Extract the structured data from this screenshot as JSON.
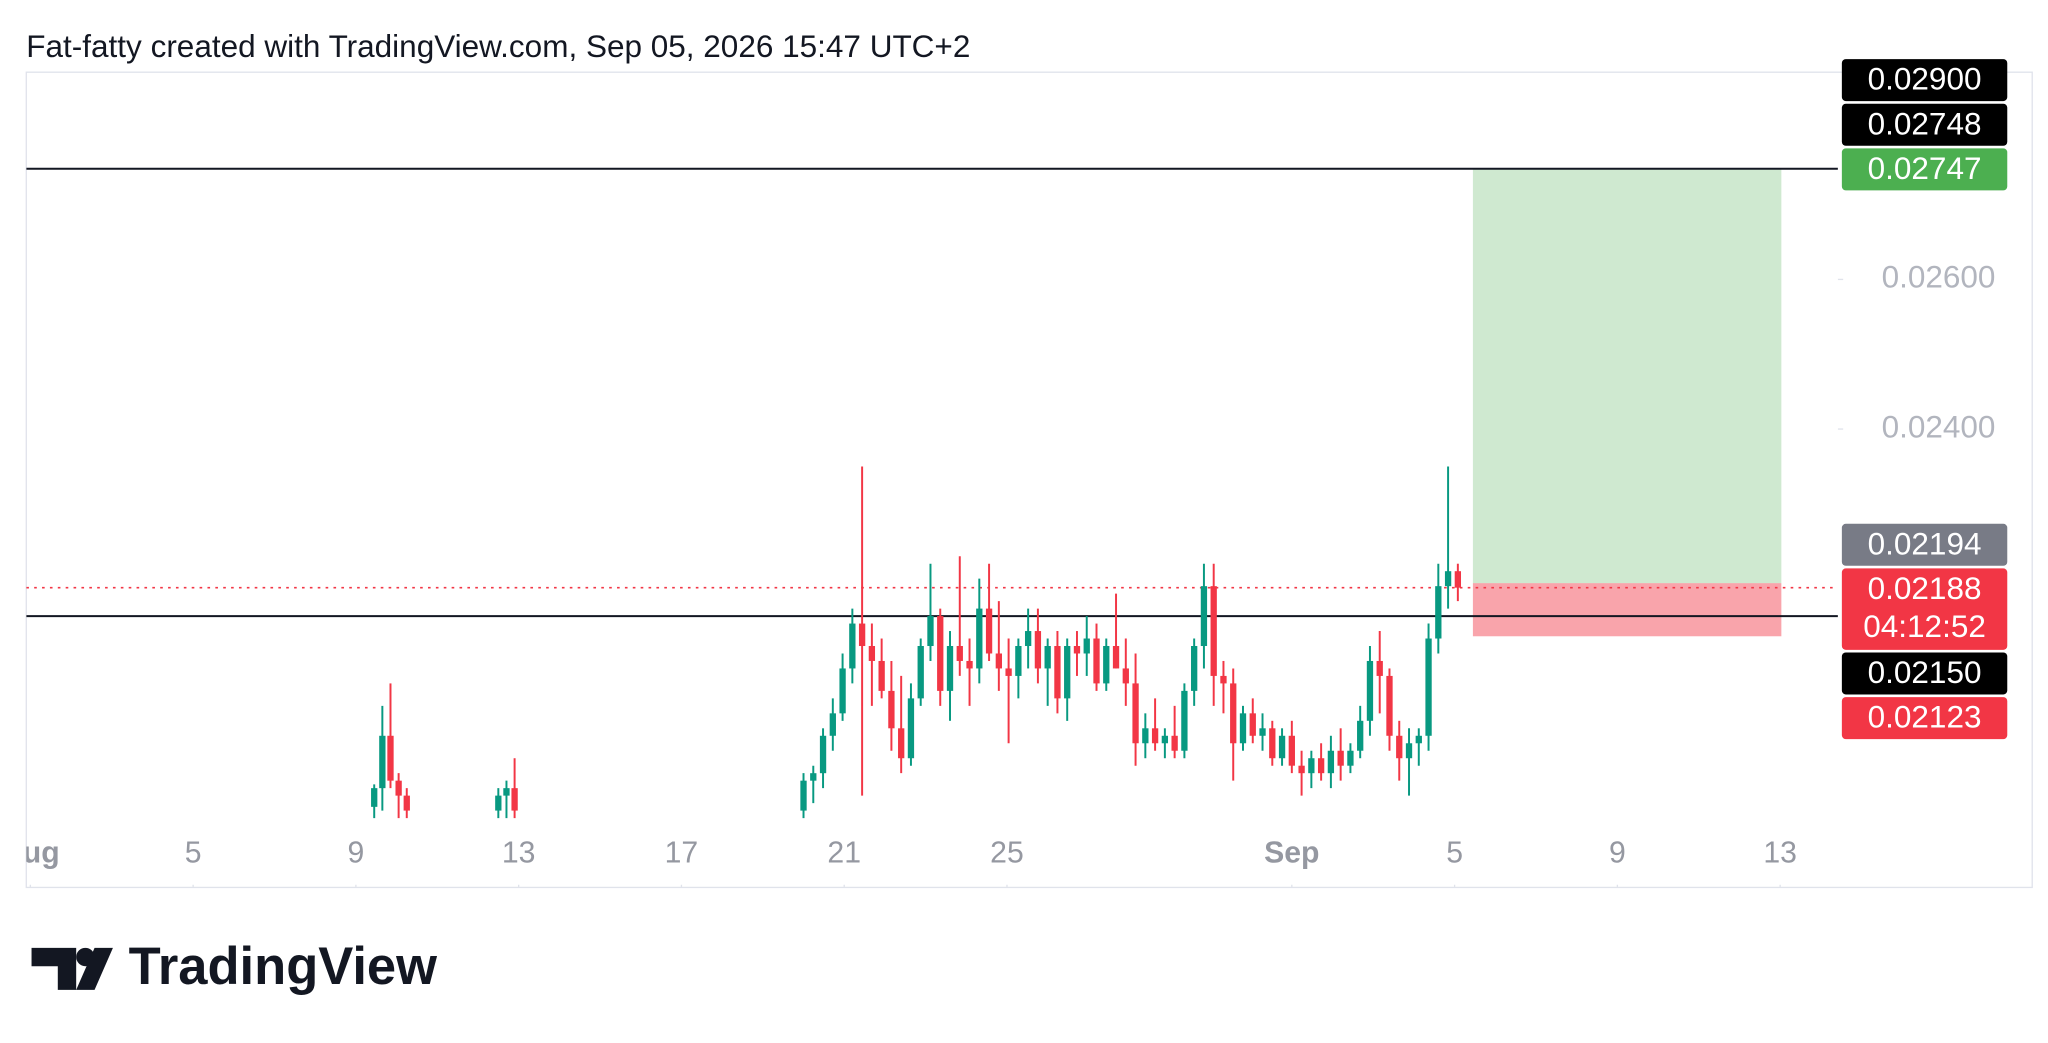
{
  "chart_data": {
    "type": "candlestick",
    "title": "Fat-fatty created with TradingView.com, Sep 05, 2026 15:47 UTC+2",
    "brand": "TradingView",
    "up_color": "#089981",
    "down_color": "#f23645",
    "xlim": [
      0.9,
      45.42
    ],
    "ylim": [
      0.01868,
      0.02877
    ],
    "xticks": [
      {
        "value": 1,
        "label": "Aug"
      },
      5,
      9,
      13,
      17,
      21,
      25,
      {
        "value": 32,
        "label": "Sep"
      },
      {
        "value": 36,
        "label": "5"
      },
      {
        "value": 40,
        "label": "9"
      },
      {
        "value": 44,
        "label": "13"
      }
    ],
    "yticks": [
      {
        "value": 0.024,
        "label": "0.02400"
      },
      {
        "value": 0.026,
        "label": "0.02600"
      }
    ],
    "x": [
      9.45,
      9.65,
      9.85,
      10.05,
      10.25,
      12.5,
      12.7,
      12.9,
      20.0,
      20.24,
      20.48,
      20.72,
      20.96,
      21.2,
      21.44,
      21.68,
      21.92,
      22.16,
      22.4,
      22.64,
      22.88,
      23.12,
      23.36,
      23.6,
      23.84,
      24.08,
      24.32,
      24.56,
      24.8,
      25.04,
      25.28,
      25.52,
      25.76,
      26.0,
      26.24,
      26.48,
      26.72,
      26.96,
      27.2,
      27.44,
      27.68,
      27.92,
      28.16,
      28.4,
      28.64,
      28.88,
      29.12,
      29.36,
      29.6,
      29.84,
      30.08,
      30.32,
      30.56,
      30.8,
      31.04,
      31.28,
      31.52,
      31.76,
      32.0,
      32.24,
      32.48,
      32.72,
      32.96,
      33.2,
      33.44,
      33.68,
      33.92,
      34.16,
      34.4,
      34.64,
      34.88,
      35.12,
      35.36,
      35.6,
      35.84,
      36.08
    ],
    "open": [
      0.01895,
      0.0192,
      0.0199,
      0.0193,
      0.0191,
      0.0189,
      0.0191,
      0.0192,
      0.0189,
      0.0193,
      0.0194,
      0.0199,
      0.0202,
      0.0208,
      0.0214,
      0.0211,
      0.0209,
      0.0205,
      0.02,
      0.0196,
      0.0204,
      0.0211,
      0.0215,
      0.0205,
      0.0211,
      0.0209,
      0.0208,
      0.0216,
      0.021,
      0.0208,
      0.0207,
      0.0211,
      0.0213,
      0.0208,
      0.0211,
      0.0204,
      0.0211,
      0.021,
      0.0212,
      0.0206,
      0.0211,
      0.0208,
      0.0206,
      0.0198,
      0.02,
      0.0198,
      0.0199,
      0.0197,
      0.0205,
      0.0211,
      0.0219,
      0.0207,
      0.0206,
      0.0198,
      0.0202,
      0.0199,
      0.02,
      0.0196,
      0.0199,
      0.0195,
      0.0194,
      0.0196,
      0.0194,
      0.0197,
      0.0195,
      0.0197,
      0.0201,
      0.0209,
      0.0207,
      0.0199,
      0.0196,
      0.0198,
      0.0199,
      0.0212,
      0.0219,
      0.0221
    ],
    "high": [
      0.01925,
      0.0203,
      0.0206,
      0.0194,
      0.0192,
      0.0192,
      0.0193,
      0.0196,
      0.0194,
      0.0195,
      0.02,
      0.0204,
      0.021,
      0.0216,
      0.0235,
      0.0214,
      0.0212,
      0.0209,
      0.0207,
      0.0206,
      0.0212,
      0.0222,
      0.0216,
      0.0213,
      0.0223,
      0.0212,
      0.022,
      0.0222,
      0.0217,
      0.0212,
      0.0212,
      0.0216,
      0.0216,
      0.0212,
      0.0213,
      0.0212,
      0.0213,
      0.0215,
      0.0214,
      0.0212,
      0.0218,
      0.0212,
      0.021,
      0.0202,
      0.0204,
      0.02,
      0.0203,
      0.0206,
      0.0212,
      0.0222,
      0.0222,
      0.0209,
      0.0208,
      0.0203,
      0.0204,
      0.0202,
      0.0201,
      0.02,
      0.0201,
      0.0197,
      0.0197,
      0.0198,
      0.0199,
      0.02,
      0.0198,
      0.0203,
      0.0211,
      0.0213,
      0.0208,
      0.0201,
      0.02,
      0.02,
      0.0214,
      0.0222,
      0.0235,
      0.0222
    ],
    "low": [
      0.0188,
      0.0189,
      0.0192,
      0.0188,
      0.0188,
      0.0188,
      0.0188,
      0.0188,
      0.0188,
      0.019,
      0.0192,
      0.0197,
      0.0201,
      0.0206,
      0.0191,
      0.0203,
      0.0204,
      0.0197,
      0.0194,
      0.0195,
      0.0203,
      0.0209,
      0.0203,
      0.0201,
      0.0207,
      0.0203,
      0.0206,
      0.0209,
      0.0205,
      0.0198,
      0.0204,
      0.0208,
      0.0206,
      0.0203,
      0.0202,
      0.0201,
      0.0207,
      0.0207,
      0.0205,
      0.0205,
      0.0208,
      0.0203,
      0.0195,
      0.0196,
      0.0197,
      0.0196,
      0.0196,
      0.0196,
      0.0203,
      0.0208,
      0.0203,
      0.0202,
      0.0193,
      0.0197,
      0.0198,
      0.0197,
      0.0195,
      0.0195,
      0.0194,
      0.0191,
      0.0192,
      0.0193,
      0.0192,
      0.0193,
      0.0194,
      0.0196,
      0.0199,
      0.0202,
      0.0197,
      0.0193,
      0.0191,
      0.0195,
      0.0197,
      0.021,
      0.0216,
      0.0217
    ],
    "close": [
      0.0192,
      0.0199,
      0.0193,
      0.0191,
      0.0189,
      0.0191,
      0.0192,
      0.0189,
      0.0193,
      0.0194,
      0.0199,
      0.0202,
      0.0208,
      0.0214,
      0.0211,
      0.0209,
      0.0205,
      0.02,
      0.0196,
      0.0204,
      0.0211,
      0.0215,
      0.0205,
      0.0211,
      0.0209,
      0.0208,
      0.0216,
      0.021,
      0.0208,
      0.0207,
      0.0211,
      0.0213,
      0.0208,
      0.0211,
      0.0204,
      0.0211,
      0.021,
      0.0212,
      0.0206,
      0.0211,
      0.0208,
      0.0206,
      0.0198,
      0.02,
      0.0198,
      0.0199,
      0.0197,
      0.0205,
      0.0211,
      0.0219,
      0.0207,
      0.0206,
      0.0198,
      0.0202,
      0.0199,
      0.02,
      0.0196,
      0.0199,
      0.0195,
      0.0194,
      0.0196,
      0.0194,
      0.0197,
      0.0195,
      0.0197,
      0.0201,
      0.0209,
      0.0207,
      0.0199,
      0.0196,
      0.0198,
      0.0199,
      0.0212,
      0.0219,
      0.0221,
      0.02188
    ],
    "horizontal_lines": [
      0.02748,
      0.0215
    ],
    "current_price": 0.02188,
    "position": {
      "x_start": 36.45,
      "x_end": 44.03,
      "target": 0.02747,
      "entry": 0.02194,
      "stop": 0.02123
    },
    "price_labels": [
      {
        "value": 0.029,
        "label": "0.02900",
        "color": "#000000"
      },
      {
        "value": 0.02748,
        "label": "0.02748",
        "color": "#000000"
      },
      {
        "value": 0.02747,
        "label": "0.02747",
        "color": "#4caf50"
      },
      {
        "value": 0.02194,
        "label": "0.02194",
        "color": "#787b86"
      },
      {
        "value": 0.02188,
        "label": "0.02188",
        "color": "#f23645",
        "countdown": "04:12:52"
      },
      {
        "value": 0.0215,
        "label": "0.02150",
        "color": "#000000"
      },
      {
        "value": 0.02123,
        "label": "0.02123",
        "color": "#f23645"
      }
    ]
  }
}
